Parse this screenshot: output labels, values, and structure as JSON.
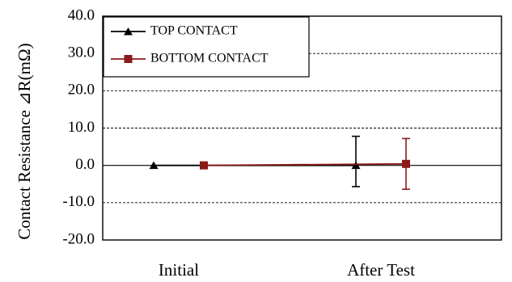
{
  "chart_data": {
    "type": "line",
    "categories": [
      "Initial",
      "After Test"
    ],
    "ylabel": "Contact Resistance ⊿R(mΩ)",
    "ylim": [
      -20.0,
      40.0
    ],
    "yticks": [
      "40.0",
      "30.0",
      "20.0",
      "10.0",
      "0.0",
      "-10.0",
      "-20.0"
    ],
    "grid": true,
    "legend_position": "top-left",
    "series": [
      {
        "name": "TOP CONTACT",
        "marker": "triangle",
        "color": "#000000",
        "values": [
          0.0,
          0.0
        ],
        "errors": [
          [
            0.0,
            0.0
          ],
          [
            5.7,
            7.8
          ]
        ]
      },
      {
        "name": "BOTTOM CONTACT",
        "marker": "square",
        "color": "#8b1a1a",
        "values": [
          0.0,
          0.4
        ],
        "errors": [
          [
            0.0,
            0.0
          ],
          [
            6.8,
            6.8
          ]
        ]
      }
    ]
  }
}
